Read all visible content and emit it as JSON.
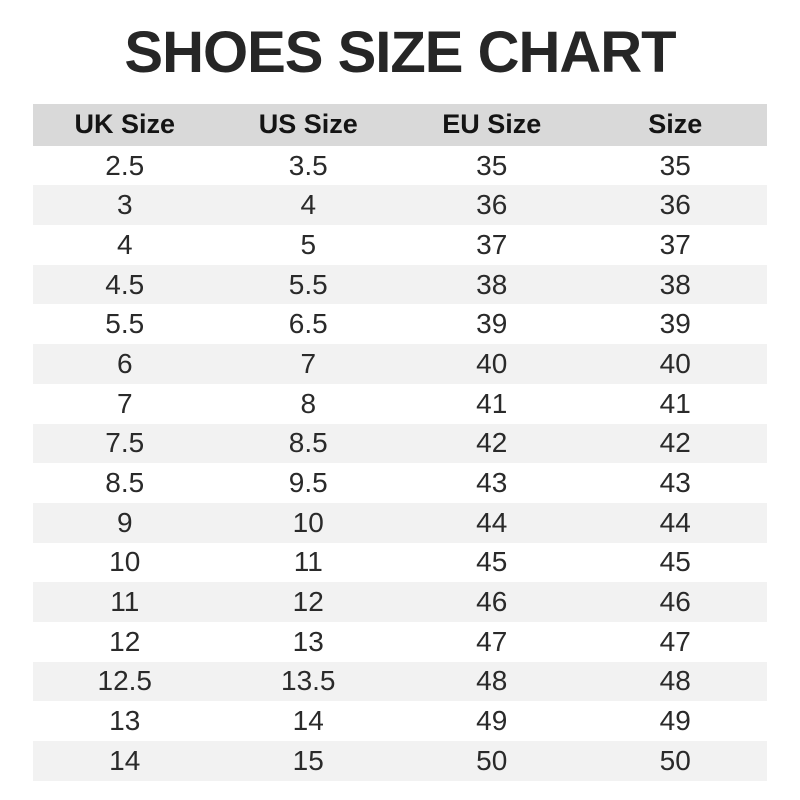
{
  "chart_data": {
    "type": "table",
    "title": "SHOES SIZE CHART",
    "columns": [
      "UK Size",
      "US Size",
      "EU Size",
      "Size"
    ],
    "rows": [
      [
        "2.5",
        "3.5",
        "35",
        "35"
      ],
      [
        "3",
        "4",
        "36",
        "36"
      ],
      [
        "4",
        "5",
        "37",
        "37"
      ],
      [
        "4.5",
        "5.5",
        "38",
        "38"
      ],
      [
        "5.5",
        "6.5",
        "39",
        "39"
      ],
      [
        "6",
        "7",
        "40",
        "40"
      ],
      [
        "7",
        "8",
        "41",
        "41"
      ],
      [
        "7.5",
        "8.5",
        "42",
        "42"
      ],
      [
        "8.5",
        "9.5",
        "43",
        "43"
      ],
      [
        "9",
        "10",
        "44",
        "44"
      ],
      [
        "10",
        "11",
        "45",
        "45"
      ],
      [
        "11",
        "12",
        "46",
        "46"
      ],
      [
        "12",
        "13",
        "47",
        "47"
      ],
      [
        "12.5",
        "13.5",
        "48",
        "48"
      ],
      [
        "13",
        "14",
        "49",
        "49"
      ],
      [
        "14",
        "15",
        "50",
        "50"
      ]
    ],
    "layout": {
      "grid": false,
      "alternating_rows": true,
      "header_position": "top"
    }
  },
  "colors": {
    "title_color": "#262626",
    "text_color": "#2a2a2a",
    "header_bg": "#d9d9d9",
    "row_alt_bg": "#f2f2f2",
    "page_bg": "#ffffff"
  }
}
